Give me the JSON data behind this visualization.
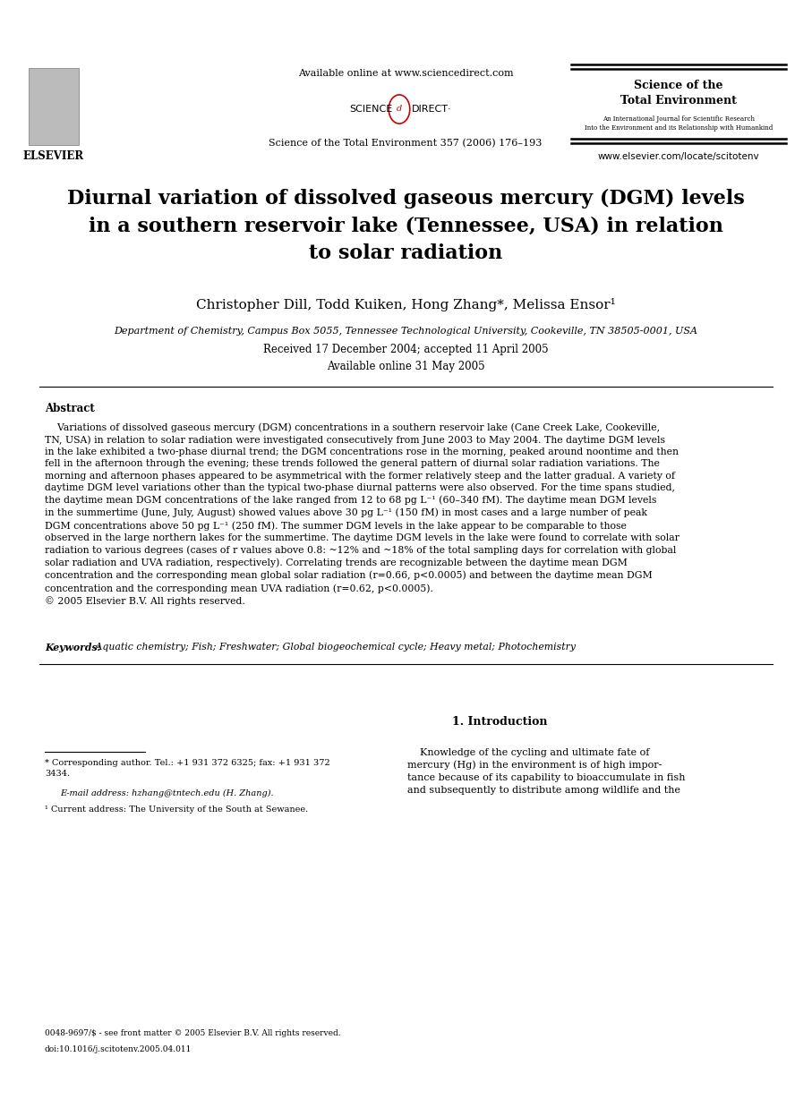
{
  "bg_color": "#ffffff",
  "page_width": 9.07,
  "page_height": 12.38,
  "dpi": 100,
  "header": {
    "available_online": "Available online at www.sciencedirect.com",
    "journal_line": "Science of the Total Environment 357 (2006) 176–193",
    "journal_name": "Science of the\nTotal Environment",
    "journal_subtitle": "An International Journal for Scientific Research\nInto the Environment and its Relationship with Humankind",
    "url": "www.elsevier.com/locate/scitotenv",
    "elsevier_label": "ELSEVIER"
  },
  "title": "Diurnal variation of dissolved gaseous mercury (DGM) levels\nin a southern reservoir lake (Tennessee, USA) in relation\nto solar radiation",
  "authors": "Christopher Dill, Todd Kuiken, Hong Zhang*, Melissa Ensor¹",
  "affiliation": "Department of Chemistry, Campus Box 5055, Tennessee Technological University, Cookeville, TN 38505-0001, USA",
  "dates": "Received 17 December 2004; accepted 11 April 2005\nAvailable online 31 May 2005",
  "abstract_title": "Abstract",
  "abstract_text": "    Variations of dissolved gaseous mercury (DGM) concentrations in a southern reservoir lake (Cane Creek Lake, Cookeville,\nTN, USA) in relation to solar radiation were investigated consecutively from June 2003 to May 2004. The daytime DGM levels\nin the lake exhibited a two-phase diurnal trend; the DGM concentrations rose in the morning, peaked around noontime and then\nfell in the afternoon through the evening; these trends followed the general pattern of diurnal solar radiation variations. The\nmorning and afternoon phases appeared to be asymmetrical with the former relatively steep and the latter gradual. A variety of\ndaytime DGM level variations other than the typical two-phase diurnal patterns were also observed. For the time spans studied,\nthe daytime mean DGM concentrations of the lake ranged from 12 to 68 pg L⁻¹ (60–340 fM). The daytime mean DGM levels\nin the summertime (June, July, August) showed values above 30 pg L⁻¹ (150 fM) in most cases and a large number of peak\nDGM concentrations above 50 pg L⁻¹ (250 fM). The summer DGM levels in the lake appear to be comparable to those\nobserved in the large northern lakes for the summertime. The daytime DGM levels in the lake were found to correlate with solar\nradiation to various degrees (cases of r values above 0.8: ~12% and ~18% of the total sampling days for correlation with global\nsolar radiation and UVA radiation, respectively). Correlating trends are recognizable between the daytime mean DGM\nconcentration and the corresponding mean global solar radiation (r=0.66, p<0.0005) and between the daytime mean DGM\nconcentration and the corresponding mean UVA radiation (r=0.62, p<0.0005).\n© 2005 Elsevier B.V. All rights reserved.",
  "keywords_label": "Keywords:",
  "keywords_text": " Aquatic chemistry; Fish; Freshwater; Global biogeochemical cycle; Heavy metal; Photochemistry",
  "section1_title": "1. Introduction",
  "intro_text": "    Knowledge of the cycling and ultimate fate of\nmercury (Hg) in the environment is of high impor-\ntance because of its capability to bioaccumulate in fish\nand subsequently to distribute among wildlife and the",
  "footnotes": {
    "corresponding": "* Corresponding author. Tel.: +1 931 372 6325; fax: +1 931 372\n3434.",
    "email": "E-mail address: hzhang@tntech.edu (H. Zhang).",
    "current": "¹ Current address: The University of the South at Sewanee.",
    "issn": "0048-9697/$ - see front matter © 2005 Elsevier B.V. All rights reserved.",
    "doi": "doi:10.1016/j.scitotenv.2005.04.011"
  }
}
